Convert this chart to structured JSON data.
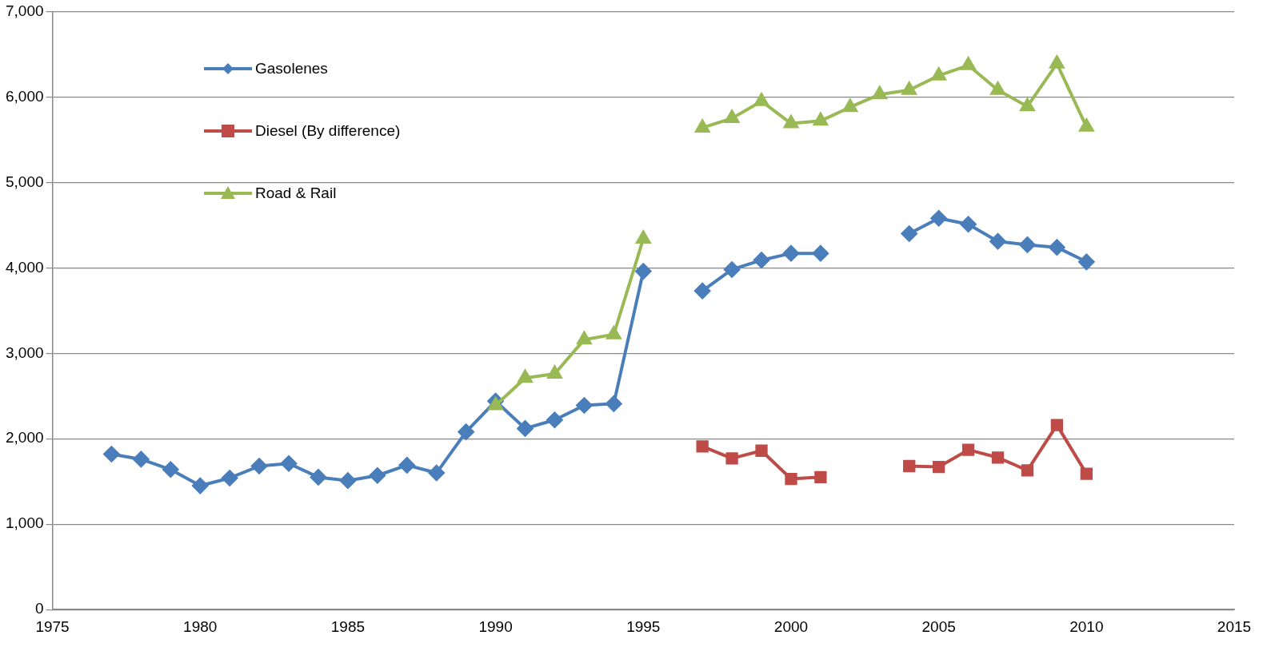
{
  "chart_data": {
    "type": "line",
    "legend": "top left",
    "grid": "y",
    "line_style": "solid",
    "xlim": [
      1975,
      2015
    ],
    "xticks": [
      1975,
      1980,
      1985,
      1990,
      1995,
      2000,
      2005,
      2010,
      2015
    ],
    "ylim": [
      0,
      7000
    ],
    "yticks": [
      0,
      {
        "value": 1000,
        "label": "1,000"
      },
      {
        "value": 2000,
        "label": "2,000"
      },
      {
        "value": 3000,
        "label": "3,000"
      },
      {
        "value": 4000,
        "label": "4,000"
      },
      {
        "value": 5000,
        "label": "5,000"
      },
      {
        "value": 6000,
        "label": "6,000"
      },
      {
        "value": 7000,
        "label": "7,000"
      }
    ],
    "series": [
      {
        "name": "Gasolenes",
        "color": "#4a7ebb",
        "marker": "diamond",
        "x": [
          1977,
          1978,
          1979,
          1980,
          1981,
          1982,
          1983,
          1984,
          1985,
          1986,
          1987,
          1988,
          1989,
          1990,
          1991,
          1992,
          1993,
          1994,
          1995,
          1996,
          1997,
          1998,
          1999,
          2000,
          2001,
          2002,
          2003,
          2004,
          2005,
          2006,
          2007,
          2008,
          2009,
          2010
        ],
        "values": [
          1820,
          1760,
          1640,
          1450,
          1540,
          1680,
          1710,
          1550,
          1510,
          1570,
          1690,
          1600,
          2080,
          2440,
          2120,
          2220,
          2390,
          2410,
          3960,
          null,
          3730,
          3980,
          4090,
          4170,
          4170,
          null,
          null,
          4400,
          4580,
          4510,
          4310,
          4270,
          4240,
          4070
        ]
      },
      {
        "name": "Diesel (By difference)",
        "color": "#be4b48",
        "marker": "square",
        "x": [
          1997,
          1998,
          1999,
          2000,
          2001,
          2002,
          2003,
          2004,
          2005,
          2006,
          2007,
          2008,
          2009,
          2010
        ],
        "values": [
          1910,
          1770,
          1860,
          1530,
          1550,
          null,
          null,
          1680,
          1670,
          1870,
          1780,
          1630,
          2160,
          1590
        ]
      },
      {
        "name": "Road & Rail",
        "color": "#98b954",
        "marker": "triangle",
        "x": [
          1990,
          1991,
          1992,
          1993,
          1994,
          1995,
          1996,
          1997,
          1998,
          1999,
          2000,
          2001,
          2002,
          2003,
          2004,
          2005,
          2006,
          2007,
          2008,
          2009,
          2010
        ],
        "values": [
          2390,
          2710,
          2760,
          3160,
          3220,
          4340,
          null,
          5640,
          5750,
          5950,
          5690,
          5720,
          5880,
          6030,
          6080,
          6250,
          6370,
          6080,
          5890,
          6390,
          5650
        ]
      }
    ]
  }
}
